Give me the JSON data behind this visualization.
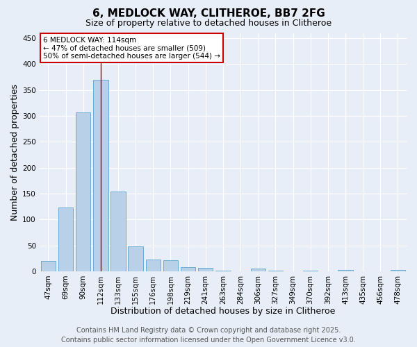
{
  "title": "6, MEDLOCK WAY, CLITHEROE, BB7 2FG",
  "subtitle": "Size of property relative to detached houses in Clitheroe",
  "xlabel": "Distribution of detached houses by size in Clitheroe",
  "ylabel": "Number of detached properties",
  "categories": [
    "47sqm",
    "69sqm",
    "90sqm",
    "112sqm",
    "133sqm",
    "155sqm",
    "176sqm",
    "198sqm",
    "219sqm",
    "241sqm",
    "263sqm",
    "284sqm",
    "306sqm",
    "327sqm",
    "349sqm",
    "370sqm",
    "392sqm",
    "413sqm",
    "435sqm",
    "456sqm",
    "478sqm"
  ],
  "values": [
    20,
    123,
    307,
    370,
    154,
    48,
    23,
    21,
    8,
    7,
    1,
    0,
    5,
    1,
    0,
    1,
    0,
    2,
    0,
    0,
    3
  ],
  "bar_color": "#b8d0e8",
  "bar_edge_color": "#6aabd2",
  "vline_x": 3,
  "vline_color": "#aa0000",
  "annotation_text": "6 MEDLOCK WAY: 114sqm\n← 47% of detached houses are smaller (509)\n50% of semi-detached houses are larger (544) →",
  "annotation_box_color": "#ffffff",
  "annotation_box_edge": "#cc0000",
  "ylim": [
    0,
    460
  ],
  "yticks": [
    0,
    50,
    100,
    150,
    200,
    250,
    300,
    350,
    400,
    450
  ],
  "footer_line1": "Contains HM Land Registry data © Crown copyright and database right 2025.",
  "footer_line2": "Contains public sector information licensed under the Open Government Licence v3.0.",
  "bg_color": "#e8eef8",
  "plot_bg_color": "#e8eef8",
  "grid_color": "#ffffff",
  "title_fontsize": 11,
  "subtitle_fontsize": 9,
  "axis_label_fontsize": 9,
  "tick_fontsize": 7.5,
  "footer_fontsize": 7,
  "annotation_fontsize": 7.5
}
